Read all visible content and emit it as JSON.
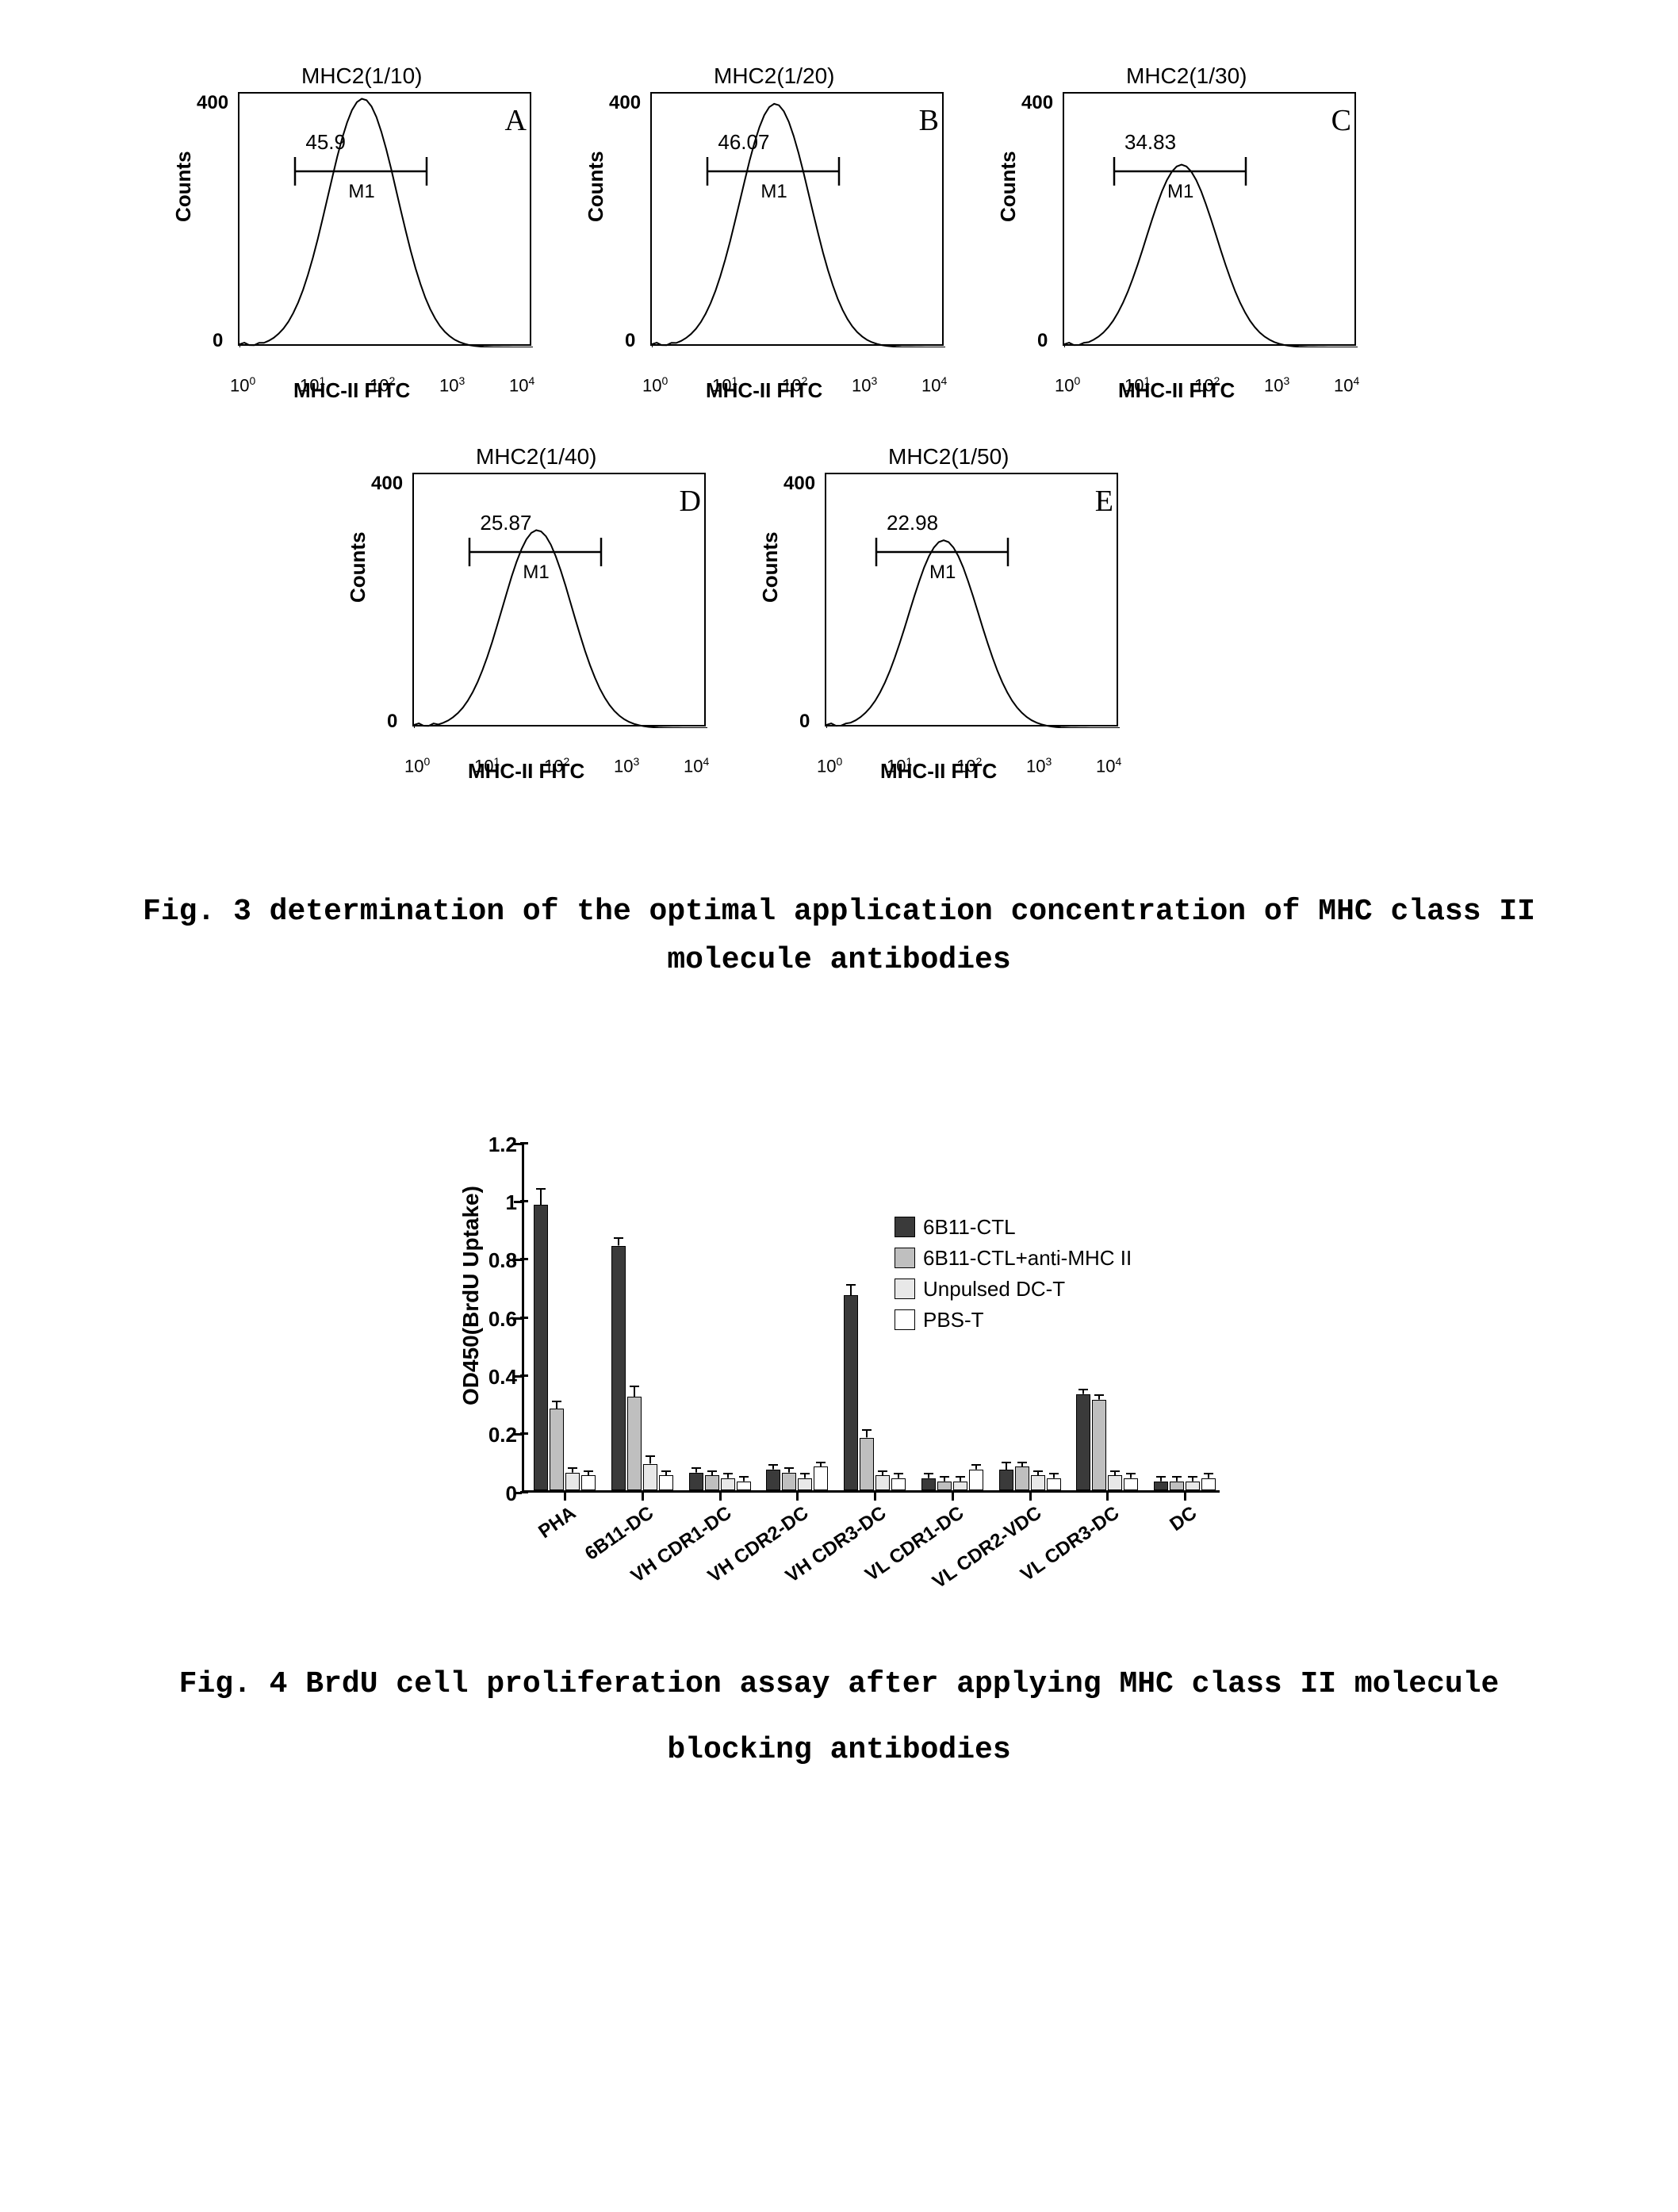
{
  "figure3": {
    "caption": "Fig. 3  determination of the optimal application concentration of MHC class II molecule antibodies",
    "ylabel": "Counts",
    "xlabel": "MHC-II FITC",
    "ymax": "400",
    "ymin": "0",
    "xticks": [
      "10",
      "10",
      "10",
      "10",
      "10"
    ],
    "xtick_exponents": [
      "0",
      "1",
      "2",
      "3",
      "4"
    ],
    "gate_label": "M1",
    "panels": [
      {
        "letter": "A",
        "title": "MHC2(1/10)",
        "gate_value": "45.9",
        "peak_x": 0.42,
        "peak_h": 0.98
      },
      {
        "letter": "B",
        "title": "MHC2(1/20)",
        "gate_value": "46.07",
        "peak_x": 0.42,
        "peak_h": 0.96
      },
      {
        "letter": "C",
        "title": "MHC2(1/30)",
        "gate_value": "34.83",
        "peak_x": 0.4,
        "peak_h": 0.72
      },
      {
        "letter": "D",
        "title": "MHC2(1/40)",
        "gate_value": "25.87",
        "peak_x": 0.42,
        "peak_h": 0.78
      },
      {
        "letter": "E",
        "title": "MHC2(1/50)",
        "gate_value": "22.98",
        "peak_x": 0.4,
        "peak_h": 0.74
      }
    ]
  },
  "figure4": {
    "caption": "Fig. 4  BrdU cell proliferation assay after applying MHC class II molecule blocking antibodies",
    "ylabel": "OD450(BrdU Uptake)",
    "ymax": 1.2,
    "ytick_step": 0.2,
    "yticks": [
      "0",
      "0.2",
      "0.4",
      "0.6",
      "0.8",
      "1",
      "1.2"
    ],
    "legend": [
      {
        "label": "6B11-CTL",
        "color": "#3a3a3a"
      },
      {
        "label": "6B11-CTL+anti-MHC II",
        "color": "#bfbfbf"
      },
      {
        "label": "Unpulsed DC-T",
        "color": "#e8e8e8"
      },
      {
        "label": "PBS-T",
        "color": "#ffffff"
      }
    ],
    "categories": [
      {
        "label": "PHA",
        "values": [
          0.98,
          0.28,
          0.06,
          0.05
        ],
        "err": [
          0.05,
          0.02,
          0.01,
          0.01
        ]
      },
      {
        "label": "6B11-DC",
        "values": [
          0.84,
          0.32,
          0.09,
          0.05
        ],
        "err": [
          0.02,
          0.03,
          0.02,
          0.01
        ]
      },
      {
        "label": "VH CDR1-DC",
        "values": [
          0.06,
          0.05,
          0.04,
          0.03
        ],
        "err": [
          0.01,
          0.01,
          0.01,
          0.01
        ]
      },
      {
        "label": "VH CDR2-DC",
        "values": [
          0.07,
          0.06,
          0.04,
          0.08
        ],
        "err": [
          0.01,
          0.01,
          0.01,
          0.01
        ]
      },
      {
        "label": "VH CDR3-DC",
        "values": [
          0.67,
          0.18,
          0.05,
          0.04
        ],
        "err": [
          0.03,
          0.02,
          0.01,
          0.01
        ]
      },
      {
        "label": "VL CDR1-DC",
        "values": [
          0.04,
          0.03,
          0.03,
          0.07
        ],
        "err": [
          0.01,
          0.01,
          0.01,
          0.01
        ]
      },
      {
        "label": "VL CDR2-VDC",
        "values": [
          0.07,
          0.08,
          0.05,
          0.04
        ],
        "err": [
          0.02,
          0.01,
          0.01,
          0.01
        ]
      },
      {
        "label": "VL CDR3-DC",
        "values": [
          0.33,
          0.31,
          0.05,
          0.04
        ],
        "err": [
          0.01,
          0.01,
          0.01,
          0.01
        ]
      },
      {
        "label": "DC",
        "values": [
          0.03,
          0.03,
          0.03,
          0.04
        ],
        "err": [
          0.01,
          0.01,
          0.01,
          0.01
        ]
      }
    ],
    "bar_colors": [
      "#3a3a3a",
      "#bfbfbf",
      "#e8e8e8",
      "#ffffff"
    ],
    "axis_color": "#000000",
    "background_color": "#ffffff"
  }
}
